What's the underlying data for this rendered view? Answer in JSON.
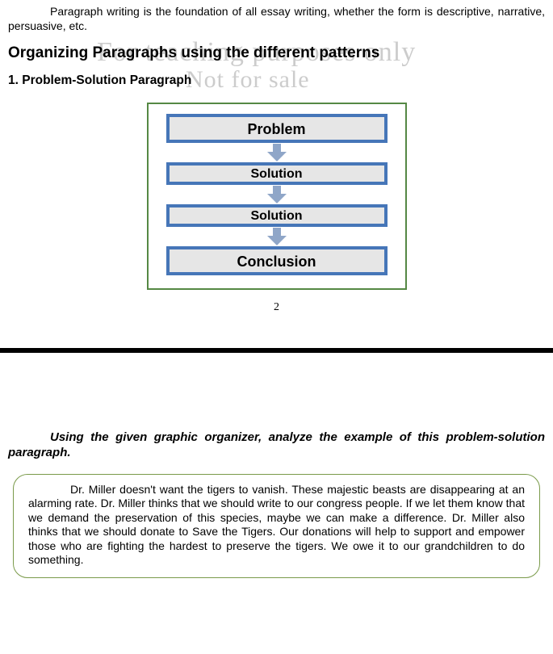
{
  "watermark": {
    "line1": "For teaching purposes only",
    "line2": "Not for sale"
  },
  "intro": "Paragraph writing is the foundation of all essay writing, whether the form is descriptive, narrative, persuasive, etc.",
  "heading_main": "Organizing Paragraphs using the different patterns",
  "heading_sub": "1.  Problem-Solution Paragraph",
  "diagram": {
    "outer_border_color": "#558844",
    "node_fill": "#e6e6e6",
    "node_border": "#4676b8",
    "arrow_color": "#8fa6c8",
    "nodes": [
      {
        "label": "Problem",
        "size": "big"
      },
      {
        "label": "Solution",
        "size": "small"
      },
      {
        "label": "Solution",
        "size": "small"
      },
      {
        "label": "Conclusion",
        "size": "big"
      }
    ]
  },
  "page_number": "2",
  "instruction": "Using the given graphic organizer, analyze the example of this problem-solution paragraph.",
  "passage_border_color": "#7a9a4a",
  "passage": "Dr. Miller doesn't want the tigers to vanish. These majestic beasts are disappearing at an alarming rate. Dr. Miller thinks that we should write to our congress people. If we let them know that we demand the preservation of this species, maybe we can make a difference. Dr. Miller also thinks that we should donate to Save the Tigers. Our donations will help to support and empower those who are fighting the hardest to preserve the tigers. We owe it to our grandchildren to do something."
}
